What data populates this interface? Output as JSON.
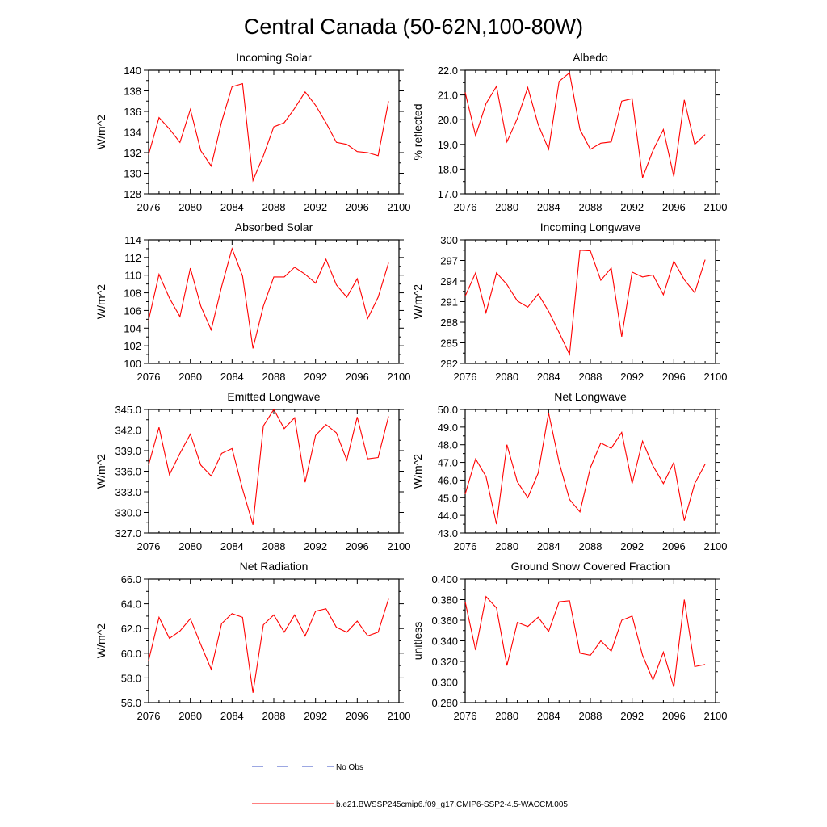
{
  "figure_title": "Central Canada (50-62N,100-80W)",
  "legend": {
    "obs_label": "No Obs",
    "obs_color": "#3a4fc4",
    "model_label": "b.e21.BWSSP245cmip6.f09_g17.CMIP6-SSP2-4.5-WACCM.005",
    "model_color": "#ff0000"
  },
  "chart_data": [
    {
      "type": "line",
      "title": "Incoming Solar",
      "ylabel": "W/m^2",
      "xlim": [
        2076,
        2100
      ],
      "ylim": [
        128,
        140
      ],
      "xticks": [
        2076,
        2080,
        2084,
        2088,
        2092,
        2096,
        2100
      ],
      "xtick_labels": [
        "2076",
        "2080",
        "2084",
        "2088",
        "2092",
        "2096",
        "2100"
      ],
      "yticks": [
        128,
        130,
        132,
        134,
        136,
        138,
        140
      ],
      "ytick_labels": [
        "128",
        "130",
        "132",
        "134",
        "136",
        "138",
        "140"
      ],
      "x": [
        2076,
        2077,
        2078,
        2079,
        2080,
        2081,
        2082,
        2083,
        2084,
        2085,
        2086,
        2087,
        2088,
        2089,
        2090,
        2091,
        2092,
        2093,
        2094,
        2095,
        2096,
        2097,
        2098,
        2099
      ],
      "series": [
        {
          "name": "b.e21.BWSSP245cmip6.f09_g17.CMIP6-SSP2-4.5-WACCM.005",
          "values": [
            131.8,
            135.4,
            134.3,
            133.0,
            136.2,
            132.2,
            130.7,
            135.0,
            138.4,
            138.7,
            129.3,
            131.7,
            134.5,
            134.9,
            136.3,
            137.9,
            136.6,
            134.9,
            133.0,
            132.8,
            132.1,
            132.0,
            131.7,
            137.0
          ]
        }
      ]
    },
    {
      "type": "line",
      "title": "Albedo",
      "ylabel": "% reflected",
      "xlim": [
        2076,
        2100
      ],
      "ylim": [
        17.0,
        22.0
      ],
      "xticks": [
        2076,
        2080,
        2084,
        2088,
        2092,
        2096,
        2100
      ],
      "xtick_labels": [
        "2076",
        "2080",
        "2084",
        "2088",
        "2092",
        "2096",
        "2100"
      ],
      "yticks": [
        17,
        18,
        19,
        20,
        21,
        22
      ],
      "ytick_labels": [
        "17.0",
        "18.0",
        "19.0",
        "20.0",
        "21.0",
        "22.0"
      ],
      "x": [
        2076,
        2077,
        2078,
        2079,
        2080,
        2081,
        2082,
        2083,
        2084,
        2085,
        2086,
        2087,
        2088,
        2089,
        2090,
        2091,
        2092,
        2093,
        2094,
        2095,
        2096,
        2097,
        2098,
        2099
      ],
      "series": [
        {
          "name": "b.e21.BWSSP245cmip6.f09_g17.CMIP6-SSP2-4.5-WACCM.005",
          "values": [
            21.1,
            19.35,
            20.65,
            21.35,
            19.1,
            20.05,
            21.3,
            19.8,
            18.8,
            21.55,
            21.9,
            19.6,
            18.8,
            19.05,
            19.1,
            20.75,
            20.85,
            17.65,
            18.75,
            19.6,
            17.7,
            20.8,
            19.0,
            19.4
          ]
        }
      ]
    },
    {
      "type": "line",
      "title": "Absorbed Solar",
      "ylabel": "W/m^2",
      "xlim": [
        2076,
        2100
      ],
      "ylim": [
        100,
        114
      ],
      "xticks": [
        2076,
        2080,
        2084,
        2088,
        2092,
        2096,
        2100
      ],
      "xtick_labels": [
        "2076",
        "2080",
        "2084",
        "2088",
        "2092",
        "2096",
        "2100"
      ],
      "yticks": [
        100,
        102,
        104,
        106,
        108,
        110,
        112,
        114
      ],
      "ytick_labels": [
        "100",
        "102",
        "104",
        "106",
        "108",
        "110",
        "112",
        "114"
      ],
      "x": [
        2076,
        2077,
        2078,
        2079,
        2080,
        2081,
        2082,
        2083,
        2084,
        2085,
        2086,
        2087,
        2088,
        2089,
        2090,
        2091,
        2092,
        2093,
        2094,
        2095,
        2096,
        2097,
        2098,
        2099
      ],
      "series": [
        {
          "name": "b.e21.BWSSP245cmip6.f09_g17.CMIP6-SSP2-4.5-WACCM.005",
          "values": [
            104.9,
            110.1,
            107.4,
            105.3,
            110.8,
            106.5,
            103.8,
            108.7,
            113.0,
            109.9,
            101.7,
            106.5,
            109.8,
            109.8,
            110.9,
            110.1,
            109.1,
            111.8,
            108.9,
            107.5,
            109.6,
            105.1,
            107.5,
            111.4
          ]
        }
      ]
    },
    {
      "type": "line",
      "title": "Incoming Longwave",
      "ylabel": "W/m^2",
      "xlim": [
        2076,
        2100
      ],
      "ylim": [
        282,
        300
      ],
      "xticks": [
        2076,
        2080,
        2084,
        2088,
        2092,
        2096,
        2100
      ],
      "xtick_labels": [
        "2076",
        "2080",
        "2084",
        "2088",
        "2092",
        "2096",
        "2100"
      ],
      "yticks": [
        282,
        285,
        288,
        291,
        294,
        297,
        300
      ],
      "ytick_labels": [
        "282",
        "285",
        "288",
        "291",
        "294",
        "297",
        "300"
      ],
      "x": [
        2076,
        2077,
        2078,
        2079,
        2080,
        2081,
        2082,
        2083,
        2084,
        2085,
        2086,
        2087,
        2088,
        2089,
        2090,
        2091,
        2092,
        2093,
        2094,
        2095,
        2096,
        2097,
        2098,
        2099
      ],
      "series": [
        {
          "name": "b.e21.BWSSP245cmip6.f09_g17.CMIP6-SSP2-4.5-WACCM.005",
          "values": [
            291.8,
            295.2,
            289.4,
            295.2,
            293.5,
            291.1,
            290.2,
            292.1,
            289.6,
            286.5,
            283.3,
            298.5,
            298.4,
            294.1,
            295.9,
            285.9,
            295.3,
            294.6,
            294.9,
            292.0,
            296.9,
            294.2,
            292.3,
            297.1
          ]
        }
      ]
    },
    {
      "type": "line",
      "title": "Emitted Longwave",
      "ylabel": "W/m^2",
      "xlim": [
        2076,
        2100
      ],
      "ylim": [
        327.0,
        345.0
      ],
      "xticks": [
        2076,
        2080,
        2084,
        2088,
        2092,
        2096,
        2100
      ],
      "xtick_labels": [
        "2076",
        "2080",
        "2084",
        "2088",
        "2092",
        "2096",
        "2100"
      ],
      "yticks": [
        327,
        330,
        333,
        336,
        339,
        342,
        345
      ],
      "ytick_labels": [
        "327.0",
        "330.0",
        "333.0",
        "336.0",
        "339.0",
        "342.0",
        "345.0"
      ],
      "x": [
        2076,
        2077,
        2078,
        2079,
        2080,
        2081,
        2082,
        2083,
        2084,
        2085,
        2086,
        2087,
        2088,
        2089,
        2090,
        2091,
        2092,
        2093,
        2094,
        2095,
        2096,
        2097,
        2098,
        2099
      ],
      "series": [
        {
          "name": "b.e21.BWSSP245cmip6.f09_g17.CMIP6-SSP2-4.5-WACCM.005",
          "values": [
            336.9,
            342.4,
            335.5,
            338.6,
            341.4,
            336.9,
            335.3,
            338.6,
            339.3,
            333.4,
            328.2,
            342.6,
            345.0,
            342.2,
            343.8,
            334.4,
            341.2,
            342.8,
            341.6,
            337.6,
            343.9,
            337.8,
            338.0,
            344.0
          ]
        }
      ]
    },
    {
      "type": "line",
      "title": "Net Longwave",
      "ylabel": "W/m^2",
      "xlim": [
        2076,
        2100
      ],
      "ylim": [
        43.0,
        50.0
      ],
      "xticks": [
        2076,
        2080,
        2084,
        2088,
        2092,
        2096,
        2100
      ],
      "xtick_labels": [
        "2076",
        "2080",
        "2084",
        "2088",
        "2092",
        "2096",
        "2100"
      ],
      "yticks": [
        43,
        44,
        45,
        46,
        47,
        48,
        49,
        50
      ],
      "ytick_labels": [
        "43.0",
        "44.0",
        "45.0",
        "46.0",
        "47.0",
        "48.0",
        "49.0",
        "50.0"
      ],
      "x": [
        2076,
        2077,
        2078,
        2079,
        2080,
        2081,
        2082,
        2083,
        2084,
        2085,
        2086,
        2087,
        2088,
        2089,
        2090,
        2091,
        2092,
        2093,
        2094,
        2095,
        2096,
        2097,
        2098,
        2099
      ],
      "series": [
        {
          "name": "b.e21.BWSSP245cmip6.f09_g17.CMIP6-SSP2-4.5-WACCM.005",
          "values": [
            45.2,
            47.2,
            46.2,
            43.5,
            48.0,
            45.9,
            45.0,
            46.4,
            49.8,
            47.0,
            44.9,
            44.2,
            46.7,
            48.1,
            47.8,
            48.7,
            45.8,
            48.2,
            46.8,
            45.8,
            47.0,
            43.7,
            45.8,
            46.9
          ]
        }
      ]
    },
    {
      "type": "line",
      "title": "Net Radiation",
      "ylabel": "W/m^2",
      "xlim": [
        2076,
        2100
      ],
      "ylim": [
        56.0,
        66.0
      ],
      "xticks": [
        2076,
        2080,
        2084,
        2088,
        2092,
        2096,
        2100
      ],
      "xtick_labels": [
        "2076",
        "2080",
        "2084",
        "2088",
        "2092",
        "2096",
        "2100"
      ],
      "yticks": [
        56,
        58,
        60,
        62,
        64,
        66
      ],
      "ytick_labels": [
        "56.0",
        "58.0",
        "60.0",
        "62.0",
        "64.0",
        "66.0"
      ],
      "x": [
        2076,
        2077,
        2078,
        2079,
        2080,
        2081,
        2082,
        2083,
        2084,
        2085,
        2086,
        2087,
        2088,
        2089,
        2090,
        2091,
        2092,
        2093,
        2094,
        2095,
        2096,
        2097,
        2098,
        2099
      ],
      "series": [
        {
          "name": "b.e21.BWSSP245cmip6.f09_g17.CMIP6-SSP2-4.5-WACCM.005",
          "values": [
            59.4,
            62.9,
            61.2,
            61.8,
            62.8,
            60.7,
            58.7,
            62.4,
            63.2,
            62.9,
            56.8,
            62.3,
            63.1,
            61.7,
            63.1,
            61.4,
            63.4,
            63.6,
            62.1,
            61.7,
            62.6,
            61.4,
            61.7,
            64.4
          ]
        }
      ]
    },
    {
      "type": "line",
      "title": "Ground Snow Covered Fraction",
      "ylabel": "unitless",
      "xlim": [
        2076,
        2100
      ],
      "ylim": [
        0.28,
        0.4
      ],
      "xticks": [
        2076,
        2080,
        2084,
        2088,
        2092,
        2096,
        2100
      ],
      "xtick_labels": [
        "2076",
        "2080",
        "2084",
        "2088",
        "2092",
        "2096",
        "2100"
      ],
      "yticks": [
        0.28,
        0.3,
        0.32,
        0.34,
        0.36,
        0.38,
        0.4
      ],
      "ytick_labels": [
        "0.280",
        "0.300",
        "0.320",
        "0.340",
        "0.360",
        "0.380",
        "0.400"
      ],
      "x": [
        2076,
        2077,
        2078,
        2079,
        2080,
        2081,
        2082,
        2083,
        2084,
        2085,
        2086,
        2087,
        2088,
        2089,
        2090,
        2091,
        2092,
        2093,
        2094,
        2095,
        2096,
        2097,
        2098,
        2099
      ],
      "series": [
        {
          "name": "b.e21.BWSSP245cmip6.f09_g17.CMIP6-SSP2-4.5-WACCM.005",
          "values": [
            0.378,
            0.331,
            0.383,
            0.372,
            0.316,
            0.358,
            0.354,
            0.363,
            0.349,
            0.378,
            0.379,
            0.328,
            0.326,
            0.34,
            0.33,
            0.36,
            0.364,
            0.326,
            0.302,
            0.329,
            0.295,
            0.38,
            0.315,
            0.317
          ]
        }
      ]
    }
  ]
}
